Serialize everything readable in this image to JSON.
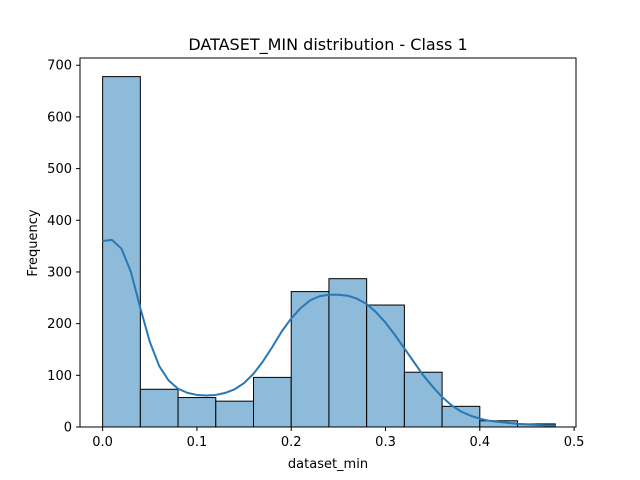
{
  "chart_data": {
    "type": "bar",
    "title": "DATASET_MIN distribution - Class 1",
    "xlabel": "dataset_min",
    "ylabel": "Frequency",
    "xlim": [
      -0.024,
      0.502
    ],
    "ylim": [
      0,
      714
    ],
    "x_ticks": [
      "0.0",
      "0.1",
      "0.2",
      "0.3",
      "0.4",
      "0.5"
    ],
    "x_tick_values": [
      0.0,
      0.1,
      0.2,
      0.3,
      0.4,
      0.5
    ],
    "y_ticks": [
      "0",
      "100",
      "200",
      "300",
      "400",
      "500",
      "600",
      "700"
    ],
    "y_tick_values": [
      0,
      100,
      200,
      300,
      400,
      500,
      600,
      700
    ],
    "bin_edges": [
      0.0,
      0.04,
      0.08,
      0.12,
      0.16,
      0.2,
      0.24,
      0.28,
      0.32,
      0.36,
      0.4,
      0.44,
      0.48
    ],
    "values": [
      678,
      73,
      57,
      50,
      96,
      262,
      287,
      236,
      106,
      40,
      12,
      6
    ],
    "kde": {
      "x": [
        0.0,
        0.01,
        0.02,
        0.03,
        0.04,
        0.05,
        0.06,
        0.07,
        0.08,
        0.09,
        0.1,
        0.11,
        0.12,
        0.13,
        0.14,
        0.15,
        0.16,
        0.17,
        0.18,
        0.19,
        0.2,
        0.21,
        0.22,
        0.23,
        0.24,
        0.25,
        0.26,
        0.27,
        0.28,
        0.29,
        0.3,
        0.31,
        0.32,
        0.33,
        0.34,
        0.35,
        0.36,
        0.37,
        0.38,
        0.39,
        0.4,
        0.41,
        0.42,
        0.43,
        0.44,
        0.45,
        0.46,
        0.47,
        0.48
      ],
      "y": [
        360,
        362,
        345,
        300,
        230,
        165,
        118,
        90,
        74,
        66,
        62,
        61,
        62,
        66,
        73,
        85,
        103,
        127,
        155,
        185,
        210,
        230,
        245,
        253,
        256,
        256,
        254,
        248,
        238,
        222,
        202,
        178,
        152,
        126,
        100,
        78,
        58,
        42,
        30,
        22,
        16,
        12,
        10,
        8,
        6,
        5,
        4,
        3,
        3
      ]
    },
    "bar_color": "#8dbbd9",
    "bar_edge_color": "#000000",
    "line_color": "#2878b5",
    "grid": false,
    "legend": false
  }
}
